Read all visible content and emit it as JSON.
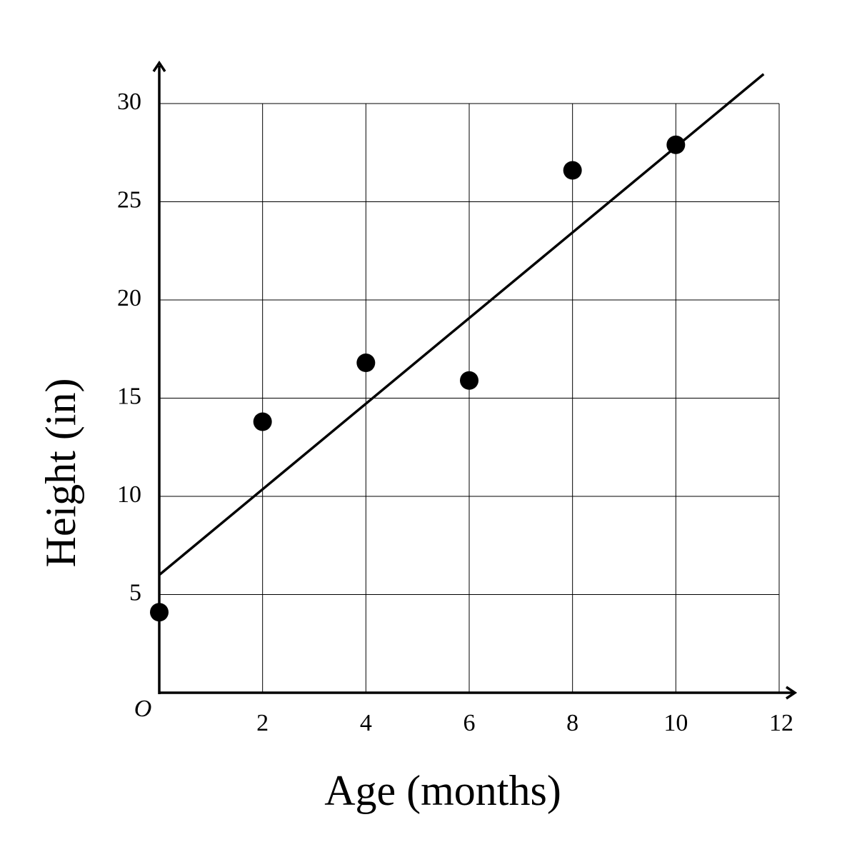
{
  "chart_data": {
    "type": "scatter",
    "xlabel": "Age (months)",
    "ylabel": "Height (in)",
    "origin_label": "O",
    "xlim": [
      0,
      12
    ],
    "ylim": [
      0,
      30
    ],
    "x_ticks": [
      2,
      4,
      6,
      8,
      10,
      12
    ],
    "y_ticks": [
      5,
      10,
      15,
      20,
      25,
      30
    ],
    "x_tick_labels": [
      "2",
      "4",
      "6",
      "8",
      "10",
      "12"
    ],
    "y_tick_labels": [
      "5",
      "10",
      "15",
      "20",
      "25",
      "30"
    ],
    "grid": true,
    "points": [
      {
        "x": 0,
        "y": 4.1
      },
      {
        "x": 2,
        "y": 13.8
      },
      {
        "x": 4,
        "y": 16.8
      },
      {
        "x": 6,
        "y": 15.9
      },
      {
        "x": 8,
        "y": 26.6
      },
      {
        "x": 10,
        "y": 27.9
      }
    ],
    "trend_line": {
      "x": [
        0,
        11.7
      ],
      "y": [
        6.0,
        31.5
      ]
    }
  }
}
